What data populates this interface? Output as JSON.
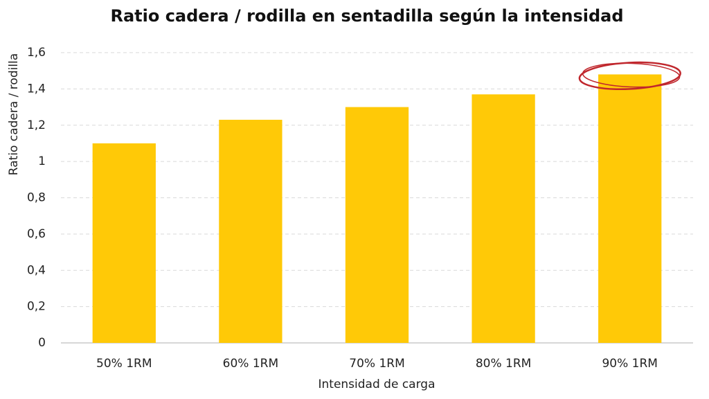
{
  "chart_data": {
    "type": "bar",
    "title": "Ratio cadera / rodilla en sentadilla según la intensidad",
    "x_label": "Intensidad de carga",
    "y_label": "Ratio cadera / rodilla",
    "categories": [
      "50% 1RM",
      "60% 1RM",
      "70% 1RM",
      "80% 1RM",
      "90% 1RM"
    ],
    "values": [
      1.1,
      1.23,
      1.3,
      1.37,
      1.48
    ],
    "color": "#ffc907",
    "ylim": [
      0,
      1.6
    ],
    "yticks": [
      0,
      {
        "value": 0.2,
        "label": "0,2"
      },
      {
        "value": 0.4,
        "label": "0,4"
      },
      {
        "value": 0.6,
        "label": "0,6"
      },
      {
        "value": 0.8,
        "label": "0,8"
      },
      1,
      {
        "value": 1.2,
        "label": "1,2"
      },
      {
        "value": 1.4,
        "label": "1,4"
      },
      {
        "value": 1.6,
        "label": "1,6"
      }
    ],
    "grid": true
  }
}
